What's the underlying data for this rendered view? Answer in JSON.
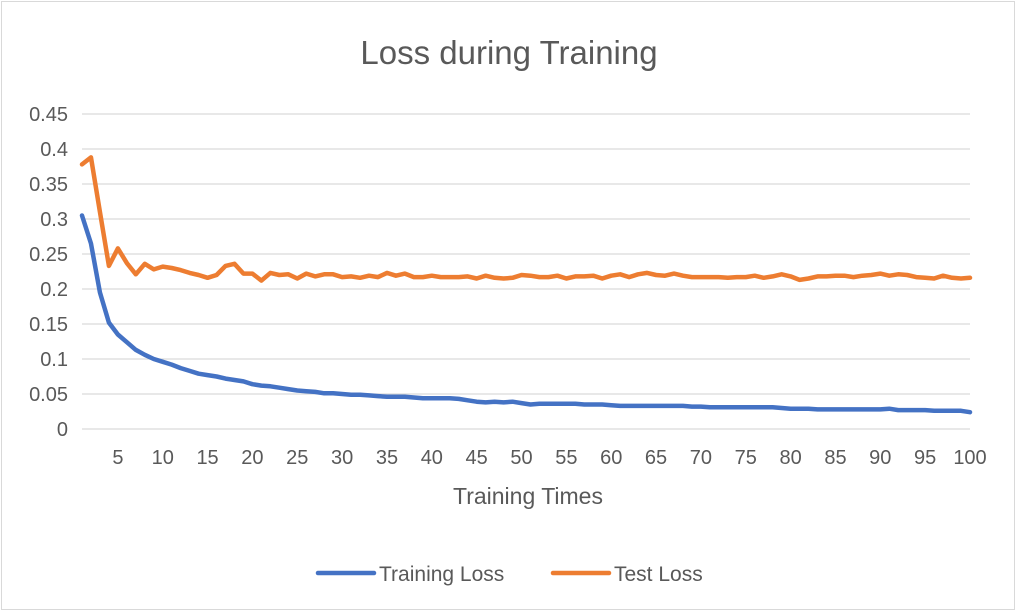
{
  "chart_data": {
    "type": "line",
    "title": "Loss during Training",
    "xlabel": "Training Times",
    "ylabel": "",
    "x": [
      1,
      2,
      3,
      4,
      5,
      6,
      7,
      8,
      9,
      10,
      11,
      12,
      13,
      14,
      15,
      16,
      17,
      18,
      19,
      20,
      21,
      22,
      23,
      24,
      25,
      26,
      27,
      28,
      29,
      30,
      31,
      32,
      33,
      34,
      35,
      36,
      37,
      38,
      39,
      40,
      41,
      42,
      43,
      44,
      45,
      46,
      47,
      48,
      49,
      50,
      51,
      52,
      53,
      54,
      55,
      56,
      57,
      58,
      59,
      60,
      61,
      62,
      63,
      64,
      65,
      66,
      67,
      68,
      69,
      70,
      71,
      72,
      73,
      74,
      75,
      76,
      77,
      78,
      79,
      80,
      81,
      82,
      83,
      84,
      85,
      86,
      87,
      88,
      89,
      90,
      91,
      92,
      93,
      94,
      95,
      96,
      97,
      98,
      99,
      100
    ],
    "xticks": [
      5,
      10,
      15,
      20,
      25,
      30,
      35,
      40,
      45,
      50,
      55,
      60,
      65,
      70,
      75,
      80,
      85,
      90,
      95,
      100
    ],
    "ylim": [
      0,
      0.45
    ],
    "yticks": [
      "0",
      "0.05",
      "0.1",
      "0.15",
      "0.2",
      "0.25",
      "0.3",
      "0.35",
      "0.4",
      "0.45"
    ],
    "ytick_values": [
      0,
      0.05,
      0.1,
      0.15,
      0.2,
      0.25,
      0.3,
      0.35,
      0.4,
      0.45
    ],
    "grid": true,
    "legend_position": "bottom",
    "series": [
      {
        "name": "Training Loss",
        "color": "#4472C4",
        "values": [
          0.305,
          0.265,
          0.195,
          0.152,
          0.135,
          0.124,
          0.113,
          0.106,
          0.1,
          0.096,
          0.092,
          0.087,
          0.083,
          0.079,
          0.077,
          0.075,
          0.072,
          0.07,
          0.068,
          0.064,
          0.062,
          0.061,
          0.059,
          0.057,
          0.055,
          0.054,
          0.053,
          0.051,
          0.051,
          0.05,
          0.049,
          0.049,
          0.048,
          0.047,
          0.046,
          0.046,
          0.046,
          0.045,
          0.044,
          0.044,
          0.044,
          0.044,
          0.043,
          0.041,
          0.039,
          0.038,
          0.039,
          0.038,
          0.039,
          0.037,
          0.035,
          0.036,
          0.036,
          0.036,
          0.036,
          0.036,
          0.035,
          0.035,
          0.035,
          0.034,
          0.033,
          0.033,
          0.033,
          0.033,
          0.033,
          0.033,
          0.033,
          0.033,
          0.032,
          0.032,
          0.031,
          0.031,
          0.031,
          0.031,
          0.031,
          0.031,
          0.031,
          0.031,
          0.03,
          0.029,
          0.029,
          0.029,
          0.028,
          0.028,
          0.028,
          0.028,
          0.028,
          0.028,
          0.028,
          0.028,
          0.029,
          0.027,
          0.027,
          0.027,
          0.027,
          0.026,
          0.026,
          0.026,
          0.026,
          0.024
        ]
      },
      {
        "name": "Test Loss",
        "color": "#ED7D31",
        "values": [
          0.378,
          0.388,
          0.31,
          0.233,
          0.258,
          0.237,
          0.221,
          0.236,
          0.228,
          0.232,
          0.23,
          0.227,
          0.223,
          0.22,
          0.216,
          0.22,
          0.233,
          0.236,
          0.222,
          0.222,
          0.212,
          0.223,
          0.22,
          0.221,
          0.215,
          0.222,
          0.218,
          0.221,
          0.221,
          0.217,
          0.218,
          0.216,
          0.219,
          0.217,
          0.223,
          0.219,
          0.222,
          0.217,
          0.217,
          0.219,
          0.217,
          0.217,
          0.217,
          0.218,
          0.215,
          0.219,
          0.216,
          0.215,
          0.216,
          0.22,
          0.219,
          0.217,
          0.217,
          0.219,
          0.215,
          0.218,
          0.218,
          0.219,
          0.215,
          0.219,
          0.221,
          0.217,
          0.221,
          0.223,
          0.22,
          0.219,
          0.222,
          0.219,
          0.217,
          0.217,
          0.217,
          0.217,
          0.216,
          0.217,
          0.217,
          0.219,
          0.216,
          0.218,
          0.221,
          0.218,
          0.213,
          0.215,
          0.218,
          0.218,
          0.219,
          0.219,
          0.217,
          0.219,
          0.22,
          0.222,
          0.219,
          0.221,
          0.22,
          0.217,
          0.216,
          0.215,
          0.219,
          0.216,
          0.215,
          0.216
        ]
      }
    ]
  }
}
